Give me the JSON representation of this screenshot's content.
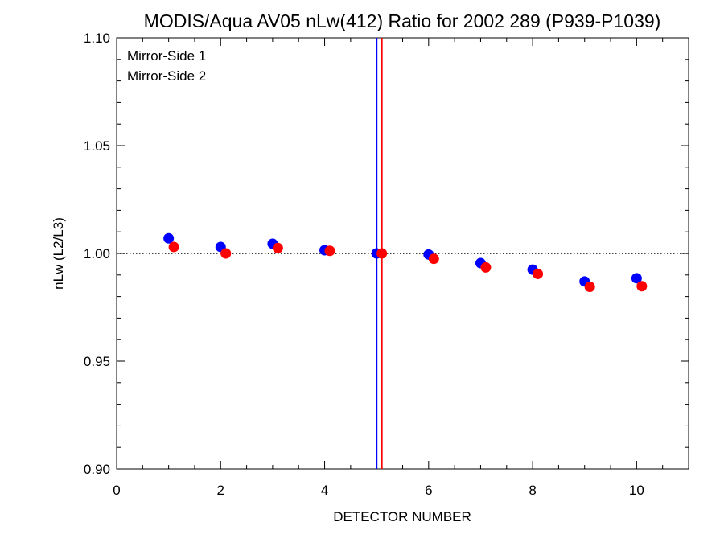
{
  "chart_data": {
    "type": "scatter",
    "title": "MODIS/Aqua AV05 nLw(412) Ratio for 2002 289 (P939-P1039)",
    "xlabel": "DETECTOR NUMBER",
    "ylabel": "nLw (L2/L3)",
    "xlim": [
      0,
      11
    ],
    "ylim": [
      0.9,
      1.1
    ],
    "xticks": [
      0,
      2,
      4,
      6,
      8,
      10
    ],
    "xtick_labels": [
      "0",
      "2",
      "4",
      "6",
      "8",
      "10"
    ],
    "yticks": [
      0.9,
      0.95,
      1.0,
      1.05,
      1.1
    ],
    "ytick_labels": [
      "0.90",
      "0.95",
      "1.00",
      "1.05",
      "1.10"
    ],
    "reference_line_y": 1.0,
    "legend_position": "top-left",
    "series": [
      {
        "name": "Mirror-Side 1",
        "color": "#0000ff",
        "x": [
          1,
          2,
          3,
          4,
          5,
          6,
          7,
          8,
          9,
          10
        ],
        "y": [
          1.007,
          1.003,
          1.0045,
          1.0015,
          1.0,
          0.9995,
          0.9955,
          0.9925,
          0.987,
          0.9885
        ],
        "vline_x": 5.0
      },
      {
        "name": "Mirror-Side 2",
        "color": "#ff0000",
        "x": [
          1.1,
          2.1,
          3.1,
          4.1,
          5.1,
          6.1,
          7.1,
          8.1,
          9.1,
          10.1
        ],
        "y": [
          1.003,
          1.0,
          1.0025,
          1.0012,
          1.0,
          0.9975,
          0.9935,
          0.9905,
          0.9845,
          0.9848
        ],
        "vline_x": 5.1
      }
    ]
  }
}
